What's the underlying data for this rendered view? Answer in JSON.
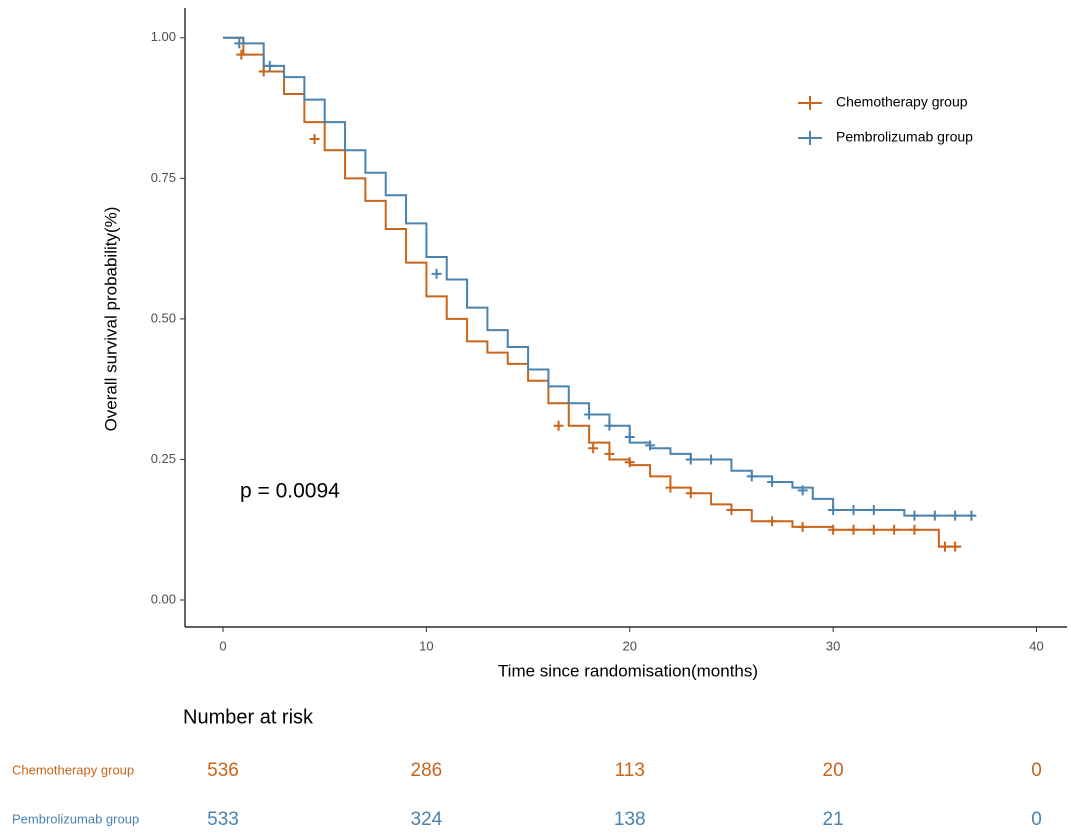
{
  "chart_data": {
    "type": "km",
    "xlabel": "Time since randomisation(months)",
    "ylabel": "Overall survival probability(%)",
    "annotation": "p = 0.0094",
    "xlim": [
      -1.87,
      41.5
    ],
    "ylim": [
      -0.048,
      1.053
    ],
    "xticks": [
      0,
      10,
      20,
      30,
      40
    ],
    "yticks": [
      {
        "value": 0,
        "label": "0.00"
      },
      {
        "value": 0.25,
        "label": "0.25"
      },
      {
        "value": 0.5,
        "label": "0.50"
      },
      {
        "value": 0.75,
        "label": "0.75"
      },
      {
        "value": 1,
        "label": "1.00"
      }
    ],
    "legend": "top-right",
    "series": [
      {
        "name": "Chemotherapy group",
        "color": "#c8651b",
        "x": [
          0,
          1,
          2,
          3,
          4,
          5,
          6,
          7,
          8,
          9,
          10,
          11,
          12,
          13,
          14,
          15,
          16,
          17,
          18,
          19,
          20,
          21,
          22,
          23,
          24,
          25,
          26,
          27,
          28,
          29,
          30,
          35,
          35.2,
          36.3
        ],
        "values": [
          1.0,
          0.97,
          0.94,
          0.9,
          0.85,
          0.8,
          0.75,
          0.71,
          0.66,
          0.6,
          0.54,
          0.5,
          0.46,
          0.44,
          0.42,
          0.39,
          0.35,
          0.31,
          0.28,
          0.25,
          0.24,
          0.22,
          0.2,
          0.19,
          0.17,
          0.16,
          0.14,
          0.14,
          0.13,
          0.13,
          0.125,
          0.125,
          0.095,
          0.095
        ],
        "censor_x": [
          0.9,
          2,
          4.5,
          16.5,
          18.2,
          19,
          20,
          22,
          23,
          25,
          27,
          28.5,
          30,
          31,
          32,
          33,
          34,
          35.5,
          36
        ],
        "censor_y": [
          0.97,
          0.94,
          0.82,
          0.31,
          0.27,
          0.26,
          0.245,
          0.2,
          0.19,
          0.16,
          0.14,
          0.13,
          0.125,
          0.125,
          0.125,
          0.125,
          0.125,
          0.095,
          0.095
        ]
      },
      {
        "name": "Pembrolizumab group",
        "color": "#4a83b0",
        "x": [
          0,
          1,
          2,
          3,
          4,
          5,
          6,
          7,
          8,
          9,
          10,
          11,
          12,
          13,
          14,
          15,
          16,
          17,
          18,
          19,
          20,
          21,
          22,
          23,
          24,
          25,
          26,
          27,
          28,
          29,
          30,
          33.3,
          33.5,
          37
        ],
        "values": [
          1.0,
          0.99,
          0.95,
          0.93,
          0.89,
          0.85,
          0.8,
          0.76,
          0.72,
          0.67,
          0.61,
          0.57,
          0.52,
          0.48,
          0.45,
          0.41,
          0.38,
          0.35,
          0.33,
          0.31,
          0.28,
          0.27,
          0.26,
          0.25,
          0.25,
          0.23,
          0.22,
          0.21,
          0.2,
          0.18,
          0.16,
          0.16,
          0.15,
          0.15
        ],
        "censor_x": [
          0.8,
          2.3,
          10.5,
          18,
          19,
          20,
          21,
          23,
          24,
          26,
          27,
          28.5,
          30,
          31,
          32,
          34,
          35,
          36,
          36.8
        ],
        "censor_y": [
          0.99,
          0.95,
          0.58,
          0.33,
          0.31,
          0.29,
          0.275,
          0.25,
          0.25,
          0.22,
          0.21,
          0.195,
          0.16,
          0.16,
          0.16,
          0.15,
          0.15,
          0.15,
          0.15
        ]
      }
    ]
  },
  "risk_table": {
    "title": "Number at risk",
    "rows": [
      {
        "name": "Chemotherapy group",
        "values": [
          536,
          286,
          113,
          20,
          0
        ]
      },
      {
        "name": "Pembrolizumab group",
        "values": [
          533,
          324,
          138,
          21,
          0
        ]
      }
    ]
  }
}
